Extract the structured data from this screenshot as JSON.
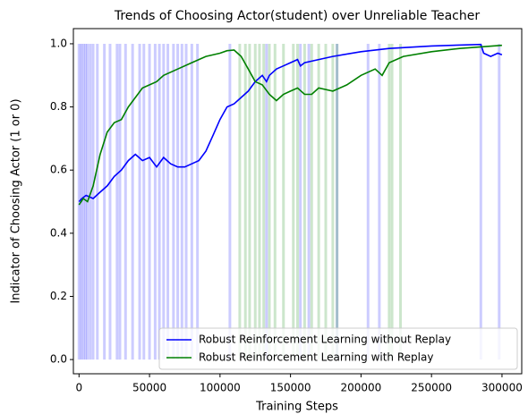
{
  "chart_data": {
    "type": "line",
    "title": "Trends of Choosing Actor(student) over Unreliable Teacher",
    "x_label": "Training Steps",
    "y_label": "Indicator of Choosing Actor (1 or 0)",
    "xlim": [
      -4000,
      314000
    ],
    "ylim": [
      -0.045,
      1.048
    ],
    "xticks": [
      0,
      50000,
      100000,
      150000,
      200000,
      250000,
      300000
    ],
    "yticks": [
      {
        "value": 0,
        "label": "0.0"
      },
      0.2,
      0.4,
      0.6,
      0.8,
      {
        "value": 1,
        "label": "1.0"
      }
    ],
    "legend": "lower right",
    "series": [
      {
        "name": "Robust Reinforcement Learning without Replay",
        "color": "#0000ff",
        "x": [
          0,
          2000,
          5000,
          10000,
          15000,
          20000,
          25000,
          30000,
          35000,
          40000,
          45000,
          50000,
          55000,
          60000,
          65000,
          70000,
          75000,
          80000,
          85000,
          90000,
          95000,
          100000,
          105000,
          110000,
          115000,
          120000,
          125000,
          130000,
          133000,
          135000,
          140000,
          145000,
          150000,
          155000,
          157000,
          160000,
          170000,
          180000,
          200000,
          220000,
          250000,
          285000,
          287000,
          292000,
          297000,
          300000
        ],
        "values": [
          0.5,
          0.51,
          0.52,
          0.51,
          0.53,
          0.55,
          0.58,
          0.6,
          0.63,
          0.65,
          0.63,
          0.64,
          0.61,
          0.64,
          0.62,
          0.61,
          0.61,
          0.62,
          0.63,
          0.66,
          0.71,
          0.76,
          0.8,
          0.81,
          0.83,
          0.85,
          0.88,
          0.9,
          0.88,
          0.9,
          0.92,
          0.93,
          0.94,
          0.95,
          0.93,
          0.94,
          0.95,
          0.96,
          0.975,
          0.985,
          0.993,
          0.998,
          0.97,
          0.96,
          0.97,
          0.965
        ]
      },
      {
        "name": "Robust Reinforcement Learning with Replay",
        "color": "#008000",
        "x": [
          0,
          3000,
          6000,
          10000,
          15000,
          20000,
          25000,
          30000,
          35000,
          40000,
          45000,
          50000,
          55000,
          60000,
          70000,
          80000,
          90000,
          100000,
          105000,
          110000,
          115000,
          120000,
          125000,
          130000,
          135000,
          140000,
          145000,
          150000,
          155000,
          160000,
          165000,
          170000,
          180000,
          190000,
          200000,
          210000,
          215000,
          220000,
          230000,
          250000,
          270000,
          300000
        ],
        "values": [
          0.49,
          0.51,
          0.5,
          0.55,
          0.65,
          0.72,
          0.75,
          0.76,
          0.8,
          0.83,
          0.86,
          0.87,
          0.88,
          0.9,
          0.92,
          0.94,
          0.96,
          0.97,
          0.978,
          0.98,
          0.96,
          0.92,
          0.88,
          0.87,
          0.84,
          0.82,
          0.84,
          0.85,
          0.86,
          0.84,
          0.84,
          0.86,
          0.85,
          0.87,
          0.9,
          0.92,
          0.9,
          0.94,
          0.96,
          0.975,
          0.985,
          0.995
        ]
      }
    ],
    "bands": [
      {
        "color": "#0000ff",
        "alpha": 0.2,
        "x": [
          0,
          1500,
          3000,
          4500,
          6000,
          8000,
          10000,
          13000,
          18000,
          22000,
          27000,
          29000,
          33000,
          38000,
          43000,
          46000,
          50000,
          54000,
          57000,
          60000,
          63000,
          67000,
          70000,
          73000,
          76000,
          80000,
          84000,
          107000,
          133000,
          157000,
          163000,
          183000,
          205000,
          213000,
          285000,
          298000
        ]
      },
      {
        "color": "#008000",
        "alpha": 0.2,
        "x": [
          114000,
          118000,
          121000,
          125000,
          128000,
          131000,
          135000,
          139000,
          145000,
          152000,
          155000,
          160000,
          165000,
          170000,
          175000,
          180000,
          183000,
          220000,
          222000,
          228000
        ]
      }
    ]
  }
}
